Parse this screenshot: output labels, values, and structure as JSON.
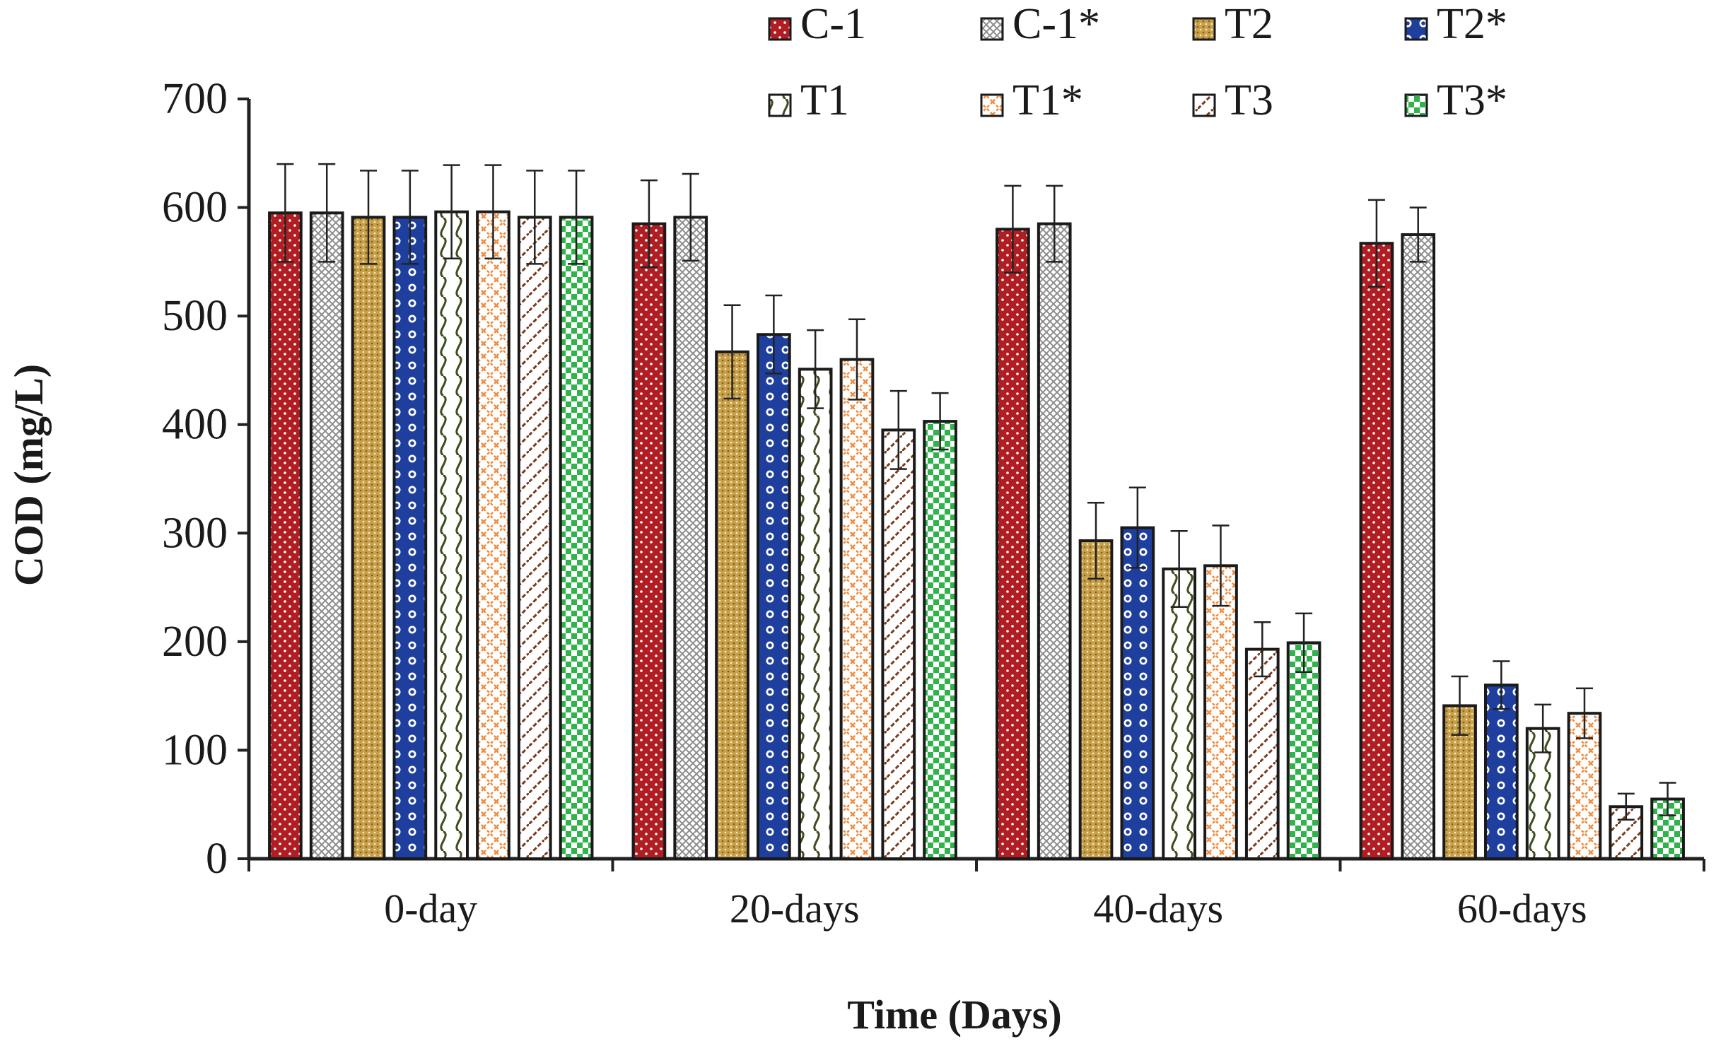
{
  "chart_data": {
    "type": "bar",
    "title": "",
    "xlabel": "Time (Days)",
    "ylabel": "COD (mg/L)",
    "ylim": [
      0,
      700
    ],
    "yticks": [
      0,
      100,
      200,
      300,
      400,
      500,
      600,
      700
    ],
    "categories": [
      "0-day",
      "20-days",
      "40-days",
      "60-days"
    ],
    "grid": false,
    "legend_position": "top",
    "series": [
      {
        "name": "C-1",
        "color": "#b01e23",
        "pattern": "dots",
        "values": [
          595,
          585,
          580,
          567
        ],
        "errors": [
          45,
          40,
          40,
          40
        ]
      },
      {
        "name": "C-1*",
        "color": "#8c8c8c",
        "pattern": "crosshatch",
        "values": [
          595,
          591,
          585,
          575
        ],
        "errors": [
          45,
          40,
          35,
          25
        ]
      },
      {
        "name": "T2",
        "color": "#c8a04a",
        "pattern": "fine-dots",
        "values": [
          591,
          467,
          293,
          141
        ],
        "errors": [
          43,
          43,
          35,
          27
        ]
      },
      {
        "name": "T2*",
        "color": "#1f3f9e",
        "pattern": "large-dots",
        "values": [
          591,
          483,
          305,
          160
        ],
        "errors": [
          43,
          36,
          37,
          22
        ]
      },
      {
        "name": "T1",
        "color": "#3d4d1e",
        "pattern": "wave",
        "values": [
          596,
          451,
          267,
          120
        ],
        "errors": [
          43,
          36,
          35,
          22
        ]
      },
      {
        "name": "T1*",
        "color": "#f08a3c",
        "pattern": "diagonal-cross",
        "values": [
          596,
          460,
          270,
          134
        ],
        "errors": [
          43,
          37,
          37,
          23
        ]
      },
      {
        "name": "T3",
        "color": "#7a3b1e",
        "pattern": "diagonal-wave",
        "values": [
          591,
          395,
          193,
          48
        ],
        "errors": [
          43,
          36,
          25,
          12
        ]
      },
      {
        "name": "T3*",
        "color": "#2fb34a",
        "pattern": "checker",
        "values": [
          591,
          403,
          199,
          55
        ],
        "errors": [
          43,
          26,
          27,
          15
        ]
      }
    ]
  }
}
